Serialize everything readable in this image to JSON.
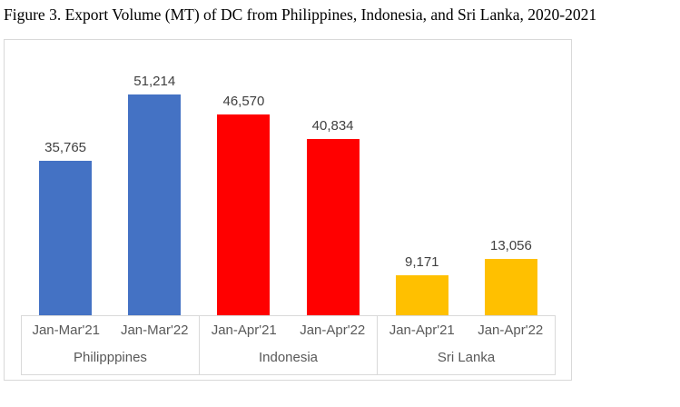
{
  "title": "Figure 3. Export Volume (MT) of DC from Philippines, Indonesia, and Sri Lanka, 2020-2021",
  "chart_data": {
    "type": "bar",
    "title": "Figure 3. Export Volume (MT) of DC from Philippines, Indonesia, and Sri Lanka, 2020-2021",
    "xlabel": "",
    "ylabel": "",
    "ylim": [
      0,
      63800
    ],
    "gridlines": false,
    "legend": false,
    "y_axis_visible": false,
    "groups": [
      {
        "category": "Philipppines",
        "color": "#4472c4",
        "bars": [
          {
            "period": "Jan-Mar'21",
            "value": 35765,
            "label": "35,765"
          },
          {
            "period": "Jan-Mar'22",
            "value": 51214,
            "label": "51,214"
          }
        ]
      },
      {
        "category": "Indonesia",
        "color": "#ff0000",
        "bars": [
          {
            "period": "Jan-Apr'21",
            "value": 46570,
            "label": "46,570"
          },
          {
            "period": "Jan-Apr'22",
            "value": 40834,
            "label": "40,834"
          }
        ]
      },
      {
        "category": "Sri Lanka",
        "color": "#ffc000",
        "bars": [
          {
            "period": "Jan-Apr'21",
            "value": 9171,
            "label": "9,171"
          },
          {
            "period": "Jan-Apr'22",
            "value": 13056,
            "label": "13,056"
          }
        ]
      }
    ],
    "style": {
      "value_label_color": "#404040",
      "axis_label_color": "#595959",
      "border_color": "#d9d9d9",
      "background": "#ffffff"
    }
  }
}
